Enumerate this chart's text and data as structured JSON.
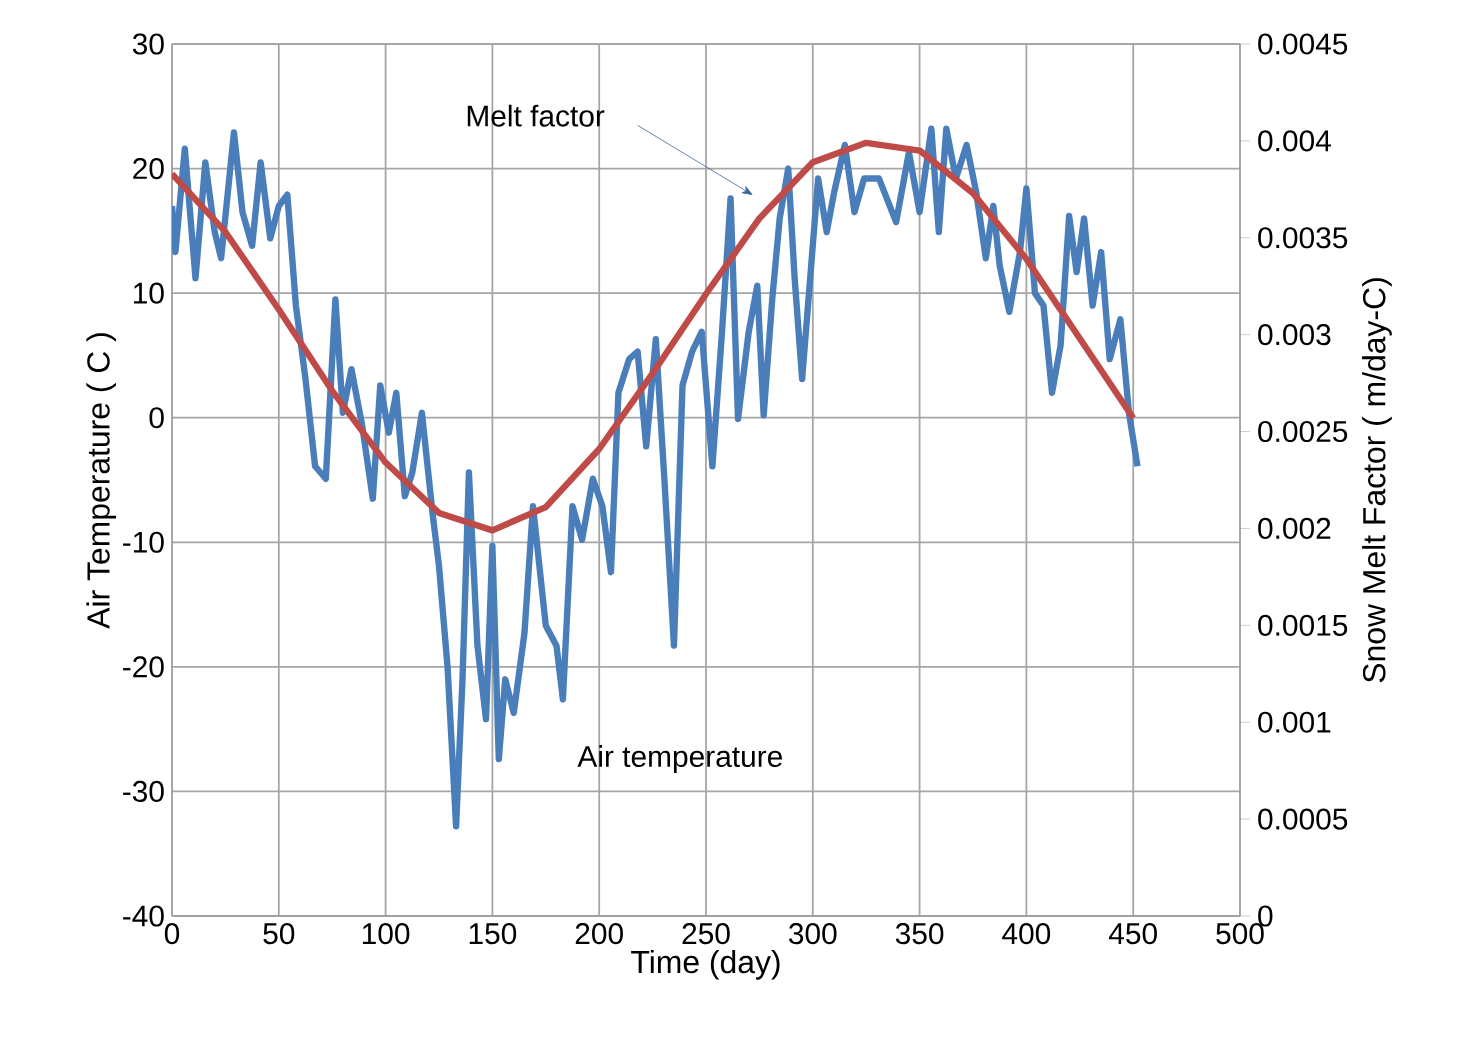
{
  "chart_data": {
    "type": "line",
    "xlabel": "Time (day)",
    "ylabel": "Air Temperature ( C )",
    "y2label": "Snow Melt Factor ( m/day-C)",
    "xlim": [
      0,
      500
    ],
    "xticks": [
      0,
      50,
      100,
      150,
      200,
      250,
      300,
      350,
      400,
      450,
      500
    ],
    "ylim": [
      -40,
      30
    ],
    "yticks": [
      -40,
      -30,
      -20,
      -10,
      0,
      10,
      20,
      30
    ],
    "y2lim": [
      0,
      0.0045
    ],
    "y2ticks": [
      0,
      0.0005,
      0.001,
      0.0015,
      0.002,
      0.0025,
      0.003,
      0.0035,
      0.004,
      0.0045
    ],
    "grid": true,
    "marker": "none",
    "line_style": "solid",
    "series": [
      {
        "name": "Air  temperature",
        "color": "#4a7ebb",
        "x": [
          0,
          1.6,
          6,
          11,
          15.6,
          20,
          23,
          29,
          33,
          37.5,
          41.5,
          46,
          50,
          54,
          58,
          62.5,
          67,
          72,
          76.5,
          80,
          84,
          89,
          94,
          97.5,
          101.5,
          105,
          109,
          112.5,
          117,
          122,
          125,
          129,
          133,
          136,
          139,
          143,
          147,
          150,
          153,
          156,
          160,
          165,
          169,
          175,
          180,
          183,
          187.5,
          192,
          197,
          201.5,
          205.5,
          209,
          214,
          218,
          222,
          226.5,
          230.5,
          235,
          239,
          243.5,
          248,
          253,
          257.5,
          261.5,
          265,
          270,
          274,
          277,
          281,
          284.5,
          288.5,
          291.5,
          295,
          299,
          302.5,
          306.5,
          310,
          315,
          319.5,
          324,
          331,
          339,
          345,
          350,
          355.5,
          359,
          362.5,
          367,
          372,
          376.5,
          381,
          384.5,
          387.5,
          392,
          397,
          400,
          404,
          408,
          412,
          416,
          420,
          423.5,
          427,
          431,
          435,
          439,
          444,
          448,
          452
        ],
        "values": [
          17,
          13.3,
          21.6,
          11.2,
          20.5,
          14.9,
          12.8,
          22.9,
          16.5,
          13.8,
          20.5,
          14.4,
          17,
          17.9,
          9,
          3.1,
          -3.9,
          -4.9,
          9.5,
          0.4,
          3.9,
          -0.6,
          -6.5,
          2.6,
          -1.2,
          2,
          -6.3,
          -4.4,
          0.4,
          -7.7,
          -11.9,
          -20,
          -32.8,
          -21,
          -4.4,
          -18.3,
          -24.2,
          -10.3,
          -27.4,
          -21,
          -23.7,
          -17.3,
          -7.1,
          -16.7,
          -18.3,
          -22.6,
          -7.1,
          -9.8,
          -4.9,
          -7.1,
          -12.4,
          2,
          4.7,
          5.3,
          -2.3,
          6.3,
          -4.9,
          -18.3,
          2.6,
          5.3,
          6.9,
          -3.9,
          6.9,
          17.6,
          -0.1,
          6.9,
          10.6,
          0.2,
          9.5,
          16,
          20,
          11.2,
          3.1,
          11.7,
          19.2,
          14.9,
          18.1,
          21.9,
          16.5,
          19.2,
          19.2,
          15.7,
          21.3,
          16.5,
          23.2,
          14.9,
          23.2,
          19.2,
          21.9,
          18.1,
          12.8,
          17,
          12.2,
          8.5,
          13.3,
          18.4,
          10,
          9,
          2,
          5.8,
          16.2,
          11.7,
          16,
          9,
          13.3,
          4.7,
          7.9,
          0.4,
          -3.9
        ]
      },
      {
        "name": "Melt factor",
        "color": "#be4b48",
        "axis": "y2",
        "x": [
          0,
          25,
          50,
          75,
          100,
          125,
          150,
          175,
          200,
          225,
          250,
          275,
          300,
          325,
          350,
          375,
          400,
          425,
          450
        ],
        "values": [
          0.00383,
          0.00353,
          0.00313,
          0.00271,
          0.00234,
          0.00208,
          0.00199,
          0.00211,
          0.00241,
          0.0028,
          0.00321,
          0.0036,
          0.00389,
          0.00399,
          0.00395,
          0.00373,
          0.00339,
          0.00298,
          0.00257
        ]
      }
    ]
  }
}
